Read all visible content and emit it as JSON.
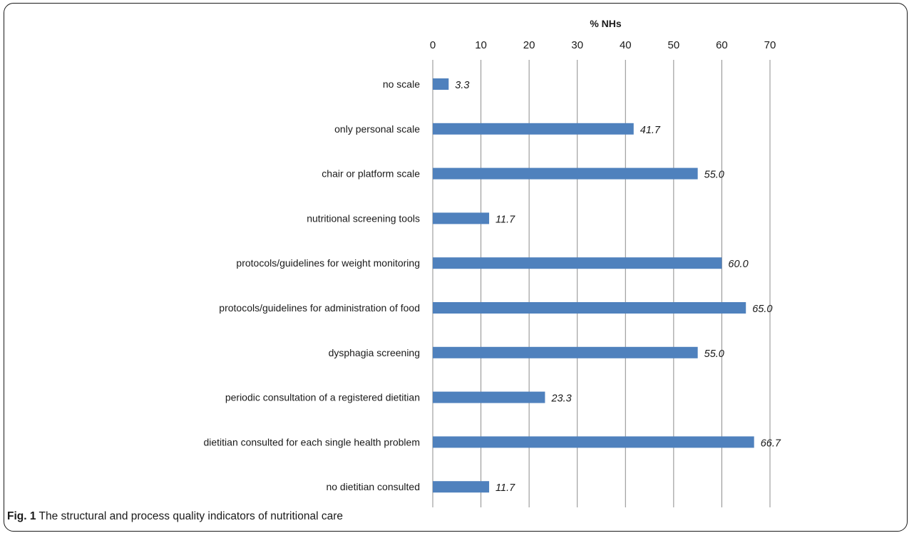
{
  "chart_data": {
    "type": "bar",
    "orientation": "horizontal",
    "xlabel": "% NHs",
    "xlim": [
      0,
      70
    ],
    "xticks": [
      0,
      10,
      20,
      30,
      40,
      50,
      60,
      70
    ],
    "x_axis_position": "top",
    "grid": true,
    "legend": "none",
    "bar_color": "#4f81bd",
    "categories": [
      "no scale",
      "only personal scale",
      "chair or platform scale",
      "nutritional screening tools",
      "protocols/guidelines for weight monitoring",
      "protocols/guidelines for administration of food",
      "dysphagia screening",
      "periodic consultation of a registered dietitian",
      "dietitian consulted for each single health problem",
      "no dietitian consulted"
    ],
    "values": [
      3.3,
      41.7,
      55.0,
      11.7,
      60.0,
      65.0,
      55.0,
      23.3,
      66.7,
      11.7
    ],
    "value_labels": [
      "3.3",
      "41.7",
      "55.0",
      "11.7",
      "60.0",
      "65.0",
      "55.0",
      "23.3",
      "66.7",
      "11.7"
    ]
  },
  "caption": {
    "fig_label": "Fig. 1",
    "text": "The structural and process quality indicators of nutritional care"
  }
}
